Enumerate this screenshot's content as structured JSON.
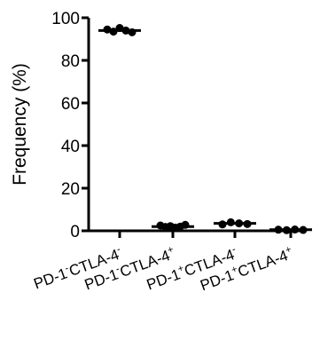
{
  "chart_data": {
    "type": "scatter",
    "title": "",
    "xlabel": "",
    "ylabel": "Frequency (%)",
    "ylim": [
      0,
      100
    ],
    "yticks": [
      "0",
      "20",
      "40",
      "60",
      "80",
      "100"
    ],
    "categories": [
      {
        "base1": "PD-1",
        "sup1": "-",
        "base2": "CTLA-4",
        "sup2": "-"
      },
      {
        "base1": "PD-1",
        "sup1": "-",
        "base2": "CTLA-4",
        "sup2": "+"
      },
      {
        "base1": "PD-1",
        "sup1": "+",
        "base2": "CTLA-4",
        "sup2": "-"
      },
      {
        "base1": "PD-1",
        "sup1": "+",
        "base2": "CTLA-4",
        "sup2": "+"
      }
    ],
    "groups": [
      {
        "mean": 94,
        "points": [
          94.5,
          93.5,
          95.2,
          94.0,
          93.2
        ]
      },
      {
        "mean": 2,
        "points": [
          2.5,
          1.8,
          2.2,
          1.5,
          2.0,
          2.8
        ]
      },
      {
        "mean": 3.5,
        "points": [
          3.0,
          4.0,
          3.5,
          3.2
        ]
      },
      {
        "mean": 0.5,
        "points": [
          0.5,
          0.3,
          0.6,
          0.4
        ]
      }
    ],
    "grid": false,
    "marker_color": "#000000"
  }
}
